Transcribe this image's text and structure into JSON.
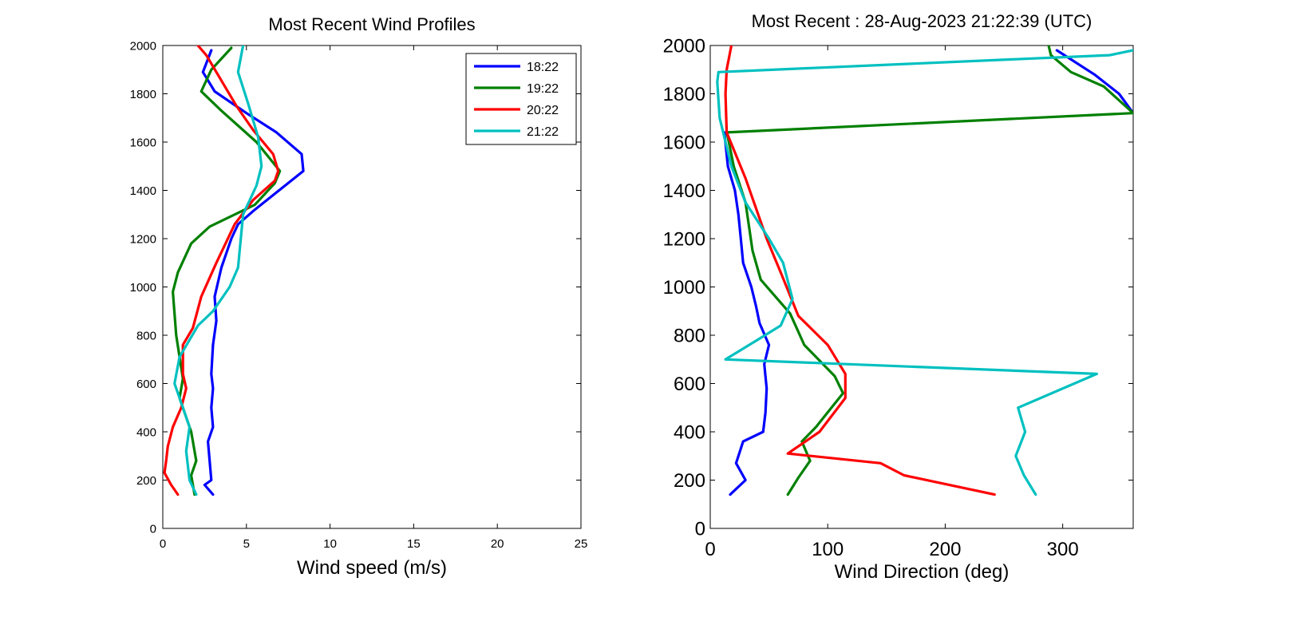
{
  "chart_data": [
    {
      "type": "line",
      "title": "Most Recent Wind Profiles",
      "xlabel": "Wind speed (m/s)",
      "ylabel": "",
      "xlim": [
        0,
        25
      ],
      "ylim": [
        0,
        2000
      ],
      "xticks": [
        0,
        5,
        10,
        15,
        20,
        25
      ],
      "yticks": [
        0,
        200,
        400,
        600,
        800,
        1000,
        1200,
        1400,
        1600,
        1800,
        2000
      ],
      "legend": {
        "position": "top-right",
        "entries": [
          "18:22",
          "19:22",
          "20:22",
          "21:22"
        ]
      },
      "series": [
        {
          "name": "18:22",
          "color": "#0000ff",
          "points": [
            [
              3.0,
              140
            ],
            [
              2.5,
              180
            ],
            [
              2.9,
              200
            ],
            [
              2.8,
              280
            ],
            [
              2.7,
              360
            ],
            [
              3.0,
              420
            ],
            [
              2.9,
              500
            ],
            [
              3.0,
              580
            ],
            [
              2.9,
              640
            ],
            [
              3.0,
              760
            ],
            [
              3.2,
              860
            ],
            [
              3.1,
              960
            ],
            [
              3.5,
              1080
            ],
            [
              4.1,
              1200
            ],
            [
              4.5,
              1260
            ],
            [
              5.5,
              1320
            ],
            [
              8.4,
              1480
            ],
            [
              8.3,
              1550
            ],
            [
              6.8,
              1640
            ],
            [
              5.0,
              1720
            ],
            [
              3.1,
              1810
            ],
            [
              2.4,
              1890
            ],
            [
              2.9,
              1980
            ]
          ]
        },
        {
          "name": "19:22",
          "color": "#008000",
          "points": [
            [
              1.9,
              140
            ],
            [
              1.7,
              220
            ],
            [
              2.0,
              280
            ],
            [
              1.7,
              400
            ],
            [
              1.0,
              540
            ],
            [
              1.2,
              620
            ],
            [
              0.8,
              800
            ],
            [
              0.6,
              980
            ],
            [
              0.9,
              1060
            ],
            [
              1.7,
              1180
            ],
            [
              2.8,
              1250
            ],
            [
              5.5,
              1340
            ],
            [
              6.7,
              1430
            ],
            [
              7.0,
              1480
            ],
            [
              5.6,
              1600
            ],
            [
              3.5,
              1730
            ],
            [
              2.3,
              1810
            ],
            [
              2.9,
              1900
            ],
            [
              4.1,
              1990
            ]
          ]
        },
        {
          "name": "20:22",
          "color": "#ff0000",
          "points": [
            [
              0.9,
              140
            ],
            [
              0.5,
              180
            ],
            [
              0.1,
              230
            ],
            [
              0.2,
              280
            ],
            [
              0.3,
              340
            ],
            [
              0.6,
              420
            ],
            [
              1.1,
              500
            ],
            [
              1.4,
              580
            ],
            [
              1.2,
              640
            ],
            [
              1.2,
              760
            ],
            [
              1.8,
              830
            ],
            [
              2.3,
              960
            ],
            [
              3.2,
              1100
            ],
            [
              4.3,
              1260
            ],
            [
              5.4,
              1360
            ],
            [
              6.7,
              1440
            ],
            [
              6.9,
              1480
            ],
            [
              6.6,
              1550
            ],
            [
              5.4,
              1650
            ],
            [
              4.4,
              1750
            ],
            [
              2.6,
              1960
            ],
            [
              2.1,
              2000
            ]
          ]
        },
        {
          "name": "21:22",
          "color": "#00c0c0",
          "points": [
            [
              2.0,
              140
            ],
            [
              1.6,
              200
            ],
            [
              1.4,
              320
            ],
            [
              1.6,
              420
            ],
            [
              1.0,
              540
            ],
            [
              0.7,
              600
            ],
            [
              1.0,
              710
            ],
            [
              2.1,
              840
            ],
            [
              3.0,
              900
            ],
            [
              4.0,
              1000
            ],
            [
              4.5,
              1080
            ],
            [
              4.8,
              1300
            ],
            [
              5.6,
              1420
            ],
            [
              5.9,
              1500
            ],
            [
              5.7,
              1620
            ],
            [
              5.1,
              1760
            ],
            [
              4.5,
              1890
            ],
            [
              4.8,
              2000
            ]
          ]
        }
      ]
    },
    {
      "type": "line",
      "title": "Most Recent : 28-Aug-2023 21:22:39 (UTC)",
      "xlabel": "Wind Direction (deg)",
      "ylabel": "",
      "xlim": [
        0,
        360
      ],
      "ylim": [
        0,
        2000
      ],
      "xticks": [
        0,
        100,
        200,
        300
      ],
      "yticks": [
        0,
        200,
        400,
        600,
        800,
        1000,
        1200,
        1400,
        1600,
        1800,
        2000
      ],
      "series": [
        {
          "name": "18:22",
          "color": "#0000ff",
          "points": [
            [
              17,
              140
            ],
            [
              30,
              200
            ],
            [
              22,
              270
            ],
            [
              28,
              360
            ],
            [
              45,
              400
            ],
            [
              47,
              480
            ],
            [
              48,
              580
            ],
            [
              46,
              680
            ],
            [
              50,
              760
            ],
            [
              42,
              850
            ],
            [
              39,
              920
            ],
            [
              35,
              1000
            ],
            [
              28,
              1100
            ],
            [
              26,
              1200
            ],
            [
              24,
              1300
            ],
            [
              21,
              1400
            ],
            [
              15,
              1500
            ],
            [
              12,
              1640
            ],
            null,
            [
              360,
              1720
            ],
            [
              348,
              1800
            ],
            [
              327,
              1880
            ],
            [
              295,
              1980
            ]
          ]
        },
        {
          "name": "19:22",
          "color": "#008000",
          "points": [
            [
              66,
              140
            ],
            [
              75,
              210
            ],
            [
              85,
              280
            ],
            [
              78,
              360
            ],
            [
              90,
              420
            ],
            [
              113,
              560
            ],
            [
              106,
              630
            ],
            [
              80,
              760
            ],
            [
              68,
              890
            ],
            [
              43,
              1030
            ],
            [
              36,
              1150
            ],
            [
              30,
              1350
            ],
            [
              20,
              1500
            ],
            [
              15,
              1620
            ],
            [
              14,
              1640
            ],
            [
              360,
              1720
            ],
            [
              335,
              1830
            ],
            [
              307,
              1890
            ],
            [
              290,
              1960
            ],
            [
              288,
              2000
            ]
          ]
        },
        {
          "name": "20:22",
          "color": "#ff0000",
          "points": [
            [
              242,
              140
            ],
            [
              165,
              220
            ],
            [
              145,
              270
            ],
            [
              66,
              310
            ],
            [
              93,
              400
            ],
            [
              115,
              540
            ],
            [
              115,
              640
            ],
            [
              100,
              760
            ],
            [
              75,
              880
            ],
            [
              60,
              1060
            ],
            [
              48,
              1200
            ],
            [
              30,
              1450
            ],
            [
              14,
              1640
            ],
            [
              13,
              1800
            ],
            [
              14,
              1900
            ],
            [
              18,
              2000
            ]
          ]
        },
        {
          "name": "21:22",
          "color": "#00c0c0",
          "points": [
            [
              277,
              140
            ],
            [
              267,
              220
            ],
            [
              260,
              300
            ],
            [
              268,
              400
            ],
            [
              262,
              500
            ],
            [
              329,
              640
            ],
            [
              13,
              700
            ],
            [
              40,
              780
            ],
            [
              60,
              840
            ],
            [
              70,
              950
            ],
            [
              62,
              1100
            ],
            [
              50,
              1200
            ],
            [
              30,
              1350
            ],
            [
              18,
              1500
            ],
            [
              8,
              1700
            ],
            [
              6,
              1850
            ],
            [
              7,
              1890
            ],
            [
              340,
              1960
            ],
            [
              360,
              1980
            ]
          ]
        }
      ]
    }
  ]
}
